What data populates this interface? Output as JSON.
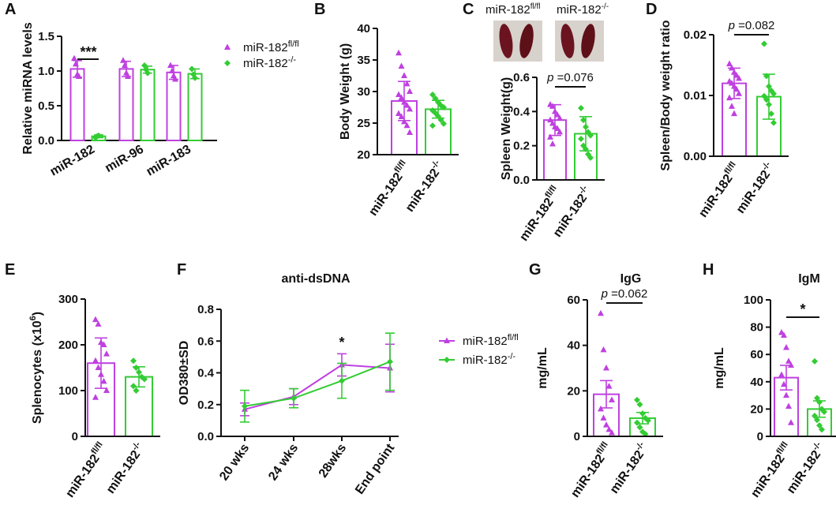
{
  "colors": {
    "fl": "#bf40e0",
    "ko": "#33cc33",
    "axis": "#111111"
  },
  "groups": {
    "fl": {
      "base": "miR-182",
      "sup": "fl/fl"
    },
    "ko": {
      "base": "miR-182",
      "sup": "-/-"
    }
  },
  "panel_c_photo": {
    "label_fl": "miR-182",
    "sup_fl": "fl/fl",
    "label_ko": "miR-182",
    "sup_ko": "-/-"
  },
  "chart_data": [
    {
      "id": "A",
      "letter": "A",
      "type": "bar",
      "title": "",
      "ylabel": "Relative miRNA levels",
      "xlabel": "",
      "ylim": [
        0,
        1.5
      ],
      "yticks": [
        0.0,
        0.5,
        1.0,
        1.5
      ],
      "ytick_labels": [
        "0.0",
        "0.5",
        "1.0",
        "1.5"
      ],
      "categories": [
        "miR-182",
        "miR-96",
        "miR-183"
      ],
      "series": [
        {
          "name": "miR-182fl/fl",
          "key": "fl",
          "values": [
            1.03,
            1.03,
            0.98
          ],
          "err": [
            0.12,
            0.11,
            0.1
          ],
          "points": [
            [
              1.18,
              1.1,
              0.95,
              0.92
            ],
            [
              1.15,
              1.08,
              0.97,
              0.92
            ],
            [
              1.08,
              1.0,
              0.93,
              0.88
            ]
          ]
        },
        {
          "name": "miR-182-/-",
          "key": "ko",
          "values": [
            0.06,
            1.02,
            0.96
          ],
          "err": [
            0.02,
            0.05,
            0.07
          ],
          "points": [
            [
              0.04,
              0.06,
              0.07
            ],
            [
              1.08,
              1.02,
              0.97
            ],
            [
              1.03,
              0.95,
              0.9
            ]
          ]
        }
      ],
      "annotations": [
        {
          "text": "***",
          "over": 0
        }
      ]
    },
    {
      "id": "B",
      "letter": "B",
      "type": "bar",
      "ylabel": "Body Weight (g)",
      "ylim": [
        20,
        40
      ],
      "yticks": [
        20,
        25,
        30,
        35,
        40
      ],
      "ytick_labels": [
        "20",
        "25",
        "30",
        "35",
        "40"
      ],
      "categories": [
        "miR-182fl/fl",
        "miR-182-/-"
      ],
      "values": [
        28.5,
        27.2
      ],
      "err": [
        3.1,
        1.4
      ],
      "points": [
        [
          36.1,
          34.0,
          32.5,
          31.2,
          30.0,
          29.5,
          29.0,
          28.3,
          27.8,
          27.2,
          26.5,
          26.0,
          25.2,
          24.6,
          23.5
        ],
        [
          29.5,
          28.9,
          28.3,
          27.8,
          27.5,
          27.0,
          26.6,
          26.1,
          25.5,
          24.9,
          24.6
        ]
      ]
    },
    {
      "id": "C",
      "letter": "C",
      "type": "bar",
      "ylabel": "Spleen Weight(g)",
      "ylim": [
        0,
        0.6
      ],
      "yticks": [
        0.0,
        0.2,
        0.4,
        0.6
      ],
      "ytick_labels": [
        "0.0",
        "0.2",
        "0.4",
        "0.6"
      ],
      "categories": [
        "miR-182fl/fl",
        "miR-182-/-"
      ],
      "values": [
        0.35,
        0.27
      ],
      "err": [
        0.09,
        0.1
      ],
      "points": [
        [
          0.44,
          0.43,
          0.4,
          0.38,
          0.36,
          0.35,
          0.33,
          0.31,
          0.3,
          0.28,
          0.25,
          0.21
        ],
        [
          0.42,
          0.35,
          0.31,
          0.28,
          0.26,
          0.24,
          0.2,
          0.18,
          0.15,
          0.13
        ]
      ],
      "pvalue": "0.076"
    },
    {
      "id": "D",
      "letter": "D",
      "type": "bar",
      "ylabel": "Spleen/Body weight ratio",
      "ylim": [
        0,
        0.02
      ],
      "yticks": [
        0.0,
        0.01,
        0.02
      ],
      "ytick_labels": [
        "0.00",
        "0.01",
        "0.02"
      ],
      "categories": [
        "miR-182fl/fl",
        "miR-182-/-"
      ],
      "values": [
        0.012,
        0.0098
      ],
      "err": [
        0.0025,
        0.0037
      ],
      "points": [
        [
          0.0152,
          0.0145,
          0.0138,
          0.0133,
          0.0128,
          0.0123,
          0.012,
          0.0115,
          0.011,
          0.0103,
          0.0096,
          0.0082,
          0.007
        ],
        [
          0.0185,
          0.0132,
          0.0115,
          0.0108,
          0.0103,
          0.0099,
          0.0093,
          0.0085,
          0.007,
          0.0055
        ]
      ],
      "pvalue": "0.082"
    },
    {
      "id": "E",
      "letter": "E",
      "type": "bar",
      "ylabel": "Splenocytes (x10",
      "ylabel_sup": "6",
      "ylabel_end": ")",
      "ylim": [
        0,
        300
      ],
      "yticks": [
        0,
        100,
        200,
        300
      ],
      "ytick_labels": [
        "0",
        "100",
        "200",
        "300"
      ],
      "categories": [
        "miR-182fl/fl",
        "miR-182-/-"
      ],
      "values": [
        160,
        130
      ],
      "err": [
        55,
        22
      ],
      "points": [
        [
          255,
          245,
          205,
          200,
          180,
          165,
          150,
          135,
          120,
          100,
          85
        ],
        [
          165,
          150,
          140,
          130,
          125,
          110,
          100
        ]
      ]
    },
    {
      "id": "F",
      "letter": "F",
      "type": "line",
      "title": "anti-dsDNA",
      "ylabel": "OD380±SD",
      "ylim": [
        0,
        0.8
      ],
      "yticks": [
        0.0,
        0.2,
        0.4,
        0.6,
        0.8
      ],
      "ytick_labels": [
        "0.0",
        "0.2",
        "0.4",
        "0.6",
        "0.8"
      ],
      "categories": [
        "20 wks",
        "24 wks",
        "28wks",
        "End point"
      ],
      "series": [
        {
          "name": "miR-182fl/fl",
          "key": "fl",
          "values": [
            0.17,
            0.25,
            0.45,
            0.43
          ],
          "err": [
            0.04,
            0.05,
            0.07,
            0.15
          ]
        },
        {
          "name": "miR-182-/-",
          "key": "ko",
          "values": [
            0.19,
            0.24,
            0.35,
            0.47
          ],
          "err": [
            0.1,
            0.06,
            0.11,
            0.18
          ]
        }
      ],
      "annotations": [
        {
          "text": "*",
          "over": 2
        }
      ]
    },
    {
      "id": "G",
      "letter": "G",
      "type": "bar",
      "title": "IgG",
      "ylabel": "mg/mL",
      "ylim": [
        0,
        60
      ],
      "yticks": [
        0,
        20,
        40,
        60
      ],
      "ytick_labels": [
        "0",
        "20",
        "40",
        "60"
      ],
      "categories": [
        "miR-182fl/fl",
        "miR-182-/-"
      ],
      "values": [
        18.5,
        8.0
      ],
      "err": [
        6.0,
        2.5
      ],
      "points": [
        [
          54,
          38,
          30,
          22,
          16,
          12,
          8,
          5,
          3,
          1.5
        ],
        [
          16,
          14,
          10,
          8,
          7,
          6,
          4,
          2,
          1
        ]
      ],
      "pvalue": "0.062"
    },
    {
      "id": "H",
      "letter": "H",
      "type": "bar",
      "title": "IgM",
      "ylabel": "mg/mL",
      "ylim": [
        0,
        100
      ],
      "yticks": [
        0,
        20,
        40,
        60,
        80,
        100
      ],
      "ytick_labels": [
        "0",
        "20",
        "40",
        "60",
        "80",
        "100"
      ],
      "categories": [
        "miR-182fl/fl",
        "miR-182-/-"
      ],
      "values": [
        43,
        20
      ],
      "err": [
        9,
        6
      ],
      "points": [
        [
          76,
          74,
          65,
          55,
          52,
          45,
          38,
          30,
          22,
          10
        ],
        [
          55,
          28,
          25,
          20,
          18,
          15,
          12,
          8,
          5
        ]
      ],
      "annotations": [
        {
          "text": "*",
          "over": 0
        }
      ]
    }
  ]
}
